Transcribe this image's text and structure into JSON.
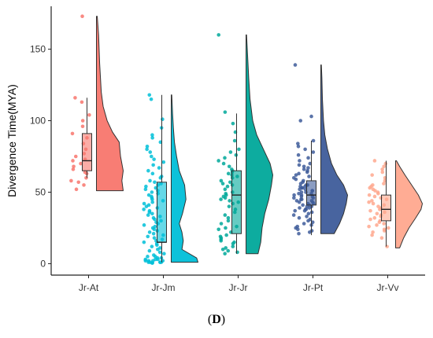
{
  "caption": {
    "open": "(",
    "letter": "D",
    "close": ")"
  },
  "chart_data": {
    "type": "raincloud",
    "ylabel": "Divergence Time(MYA)",
    "xlabel": "",
    "ylim": [
      -8,
      180
    ],
    "yticks": [
      0,
      50,
      100,
      150
    ],
    "grid": false,
    "categories": [
      "Jr-At",
      "Jr-Jm",
      "Jr-Jr",
      "Jr-Pt",
      "Jr-Vv"
    ],
    "colors": [
      "#F8766D",
      "#00BFD8",
      "#00A89A",
      "#3E5C9A",
      "#FFA88E"
    ],
    "groups": [
      {
        "name": "Jr-At",
        "box": {
          "min": 60,
          "q1": 65,
          "median": 72,
          "q3": 91,
          "max": 116
        },
        "violin_range": [
          51,
          173
        ],
        "violin_density": [
          [
            51,
            1.0
          ],
          [
            58,
            0.95
          ],
          [
            65,
            1.0
          ],
          [
            75,
            0.9
          ],
          [
            85,
            0.85
          ],
          [
            92,
            0.6
          ],
          [
            100,
            0.4
          ],
          [
            110,
            0.25
          ],
          [
            120,
            0.18
          ],
          [
            140,
            0.12
          ],
          [
            160,
            0.08
          ],
          [
            173,
            0.03
          ]
        ],
        "points": [
          173,
          116,
          113,
          104,
          100,
          96,
          91,
          88,
          84,
          80,
          77,
          75,
          73,
          72,
          70,
          68,
          66,
          64,
          63,
          60,
          58,
          57,
          55,
          52
        ]
      },
      {
        "name": "Jr-Jm",
        "box": {
          "min": 1,
          "q1": 15,
          "median": 15,
          "q3": 57,
          "max": 118
        },
        "violin_range": [
          1,
          118
        ],
        "violin_density": [
          [
            1,
            1.0
          ],
          [
            4,
            0.95
          ],
          [
            10,
            0.4
          ],
          [
            16,
            0.45
          ],
          [
            22,
            0.4
          ],
          [
            28,
            0.3
          ],
          [
            35,
            0.42
          ],
          [
            45,
            0.55
          ],
          [
            55,
            0.5
          ],
          [
            65,
            0.3
          ],
          [
            75,
            0.2
          ],
          [
            85,
            0.12
          ],
          [
            95,
            0.08
          ],
          [
            105,
            0.05
          ],
          [
            118,
            0.02
          ]
        ],
        "points": [
          118,
          115,
          101,
          95,
          90,
          88,
          85,
          82,
          80,
          78,
          75,
          73,
          71,
          69,
          67,
          65,
          63,
          61,
          60,
          58,
          57,
          56,
          55,
          54,
          53,
          52,
          51,
          50,
          49,
          48,
          47,
          46,
          45,
          44,
          43,
          42,
          41,
          40,
          39,
          38,
          37,
          36,
          35,
          34,
          33,
          32,
          31,
          30,
          29,
          28,
          27,
          26,
          25,
          24,
          23,
          22,
          21,
          20,
          19,
          18,
          17,
          16,
          15,
          14,
          13,
          12,
          11,
          10,
          9,
          8,
          7,
          6,
          5,
          5,
          4,
          4,
          3,
          3,
          3,
          2,
          2,
          2,
          2,
          1,
          1,
          1,
          1,
          1,
          0.5,
          0.5
        ]
      },
      {
        "name": "Jr-Jr",
        "box": {
          "min": 7,
          "q1": 21,
          "median": 48,
          "q3": 65,
          "max": 105
        },
        "violin_range": [
          7,
          160
        ],
        "violin_density": [
          [
            7,
            0.45
          ],
          [
            15,
            0.55
          ],
          [
            25,
            0.6
          ],
          [
            35,
            0.7
          ],
          [
            45,
            0.85
          ],
          [
            55,
            0.95
          ],
          [
            62,
            1.0
          ],
          [
            70,
            0.9
          ],
          [
            80,
            0.65
          ],
          [
            90,
            0.4
          ],
          [
            100,
            0.25
          ],
          [
            115,
            0.15
          ],
          [
            130,
            0.1
          ],
          [
            145,
            0.06
          ],
          [
            160,
            0.02
          ]
        ],
        "points": [
          160,
          106,
          98,
          92,
          86,
          80,
          78,
          76,
          74,
          72,
          70,
          68,
          66,
          65,
          64,
          63,
          62,
          61,
          60,
          58,
          57,
          56,
          55,
          54,
          52,
          50,
          49,
          48,
          47,
          46,
          45,
          44,
          43,
          42,
          40,
          38,
          36,
          34,
          32,
          30,
          28,
          26,
          25,
          24,
          22,
          20,
          19,
          18,
          17,
          16,
          15,
          14,
          12,
          11,
          10,
          9,
          8,
          7
        ]
      },
      {
        "name": "Jr-Pt",
        "box": {
          "min": 20,
          "q1": 41,
          "median": 48,
          "q3": 58,
          "max": 86
        },
        "violin_range": [
          21,
          139
        ],
        "violin_density": [
          [
            21,
            0.5
          ],
          [
            28,
            0.7
          ],
          [
            35,
            0.85
          ],
          [
            42,
            0.95
          ],
          [
            48,
            1.0
          ],
          [
            55,
            0.85
          ],
          [
            62,
            0.6
          ],
          [
            70,
            0.4
          ],
          [
            80,
            0.25
          ],
          [
            90,
            0.15
          ],
          [
            100,
            0.1
          ],
          [
            115,
            0.06
          ],
          [
            130,
            0.04
          ],
          [
            139,
            0.02
          ]
        ],
        "points": [
          139,
          103,
          100,
          86,
          84,
          82,
          80,
          78,
          76,
          74,
          72,
          70,
          69,
          68,
          67,
          66,
          65,
          64,
          63,
          62,
          61,
          60,
          59,
          58,
          57,
          56,
          55,
          55,
          54,
          54,
          53,
          53,
          52,
          52,
          51,
          51,
          50,
          50,
          49,
          49,
          48,
          48,
          47,
          47,
          46,
          46,
          45,
          45,
          44,
          44,
          43,
          43,
          42,
          42,
          41,
          41,
          40,
          40,
          39,
          39,
          38,
          38,
          37,
          37,
          36,
          35,
          34,
          33,
          32,
          31,
          30,
          29,
          28,
          27,
          26,
          25,
          24,
          23,
          22,
          21
        ]
      },
      {
        "name": "Jr-Vv",
        "box": {
          "min": 12,
          "q1": 30,
          "median": 38,
          "q3": 48,
          "max": 72
        },
        "violin_range": [
          11,
          72
        ],
        "violin_density": [
          [
            11,
            0.15
          ],
          [
            18,
            0.3
          ],
          [
            25,
            0.5
          ],
          [
            32,
            0.75
          ],
          [
            38,
            0.95
          ],
          [
            42,
            1.0
          ],
          [
            48,
            0.85
          ],
          [
            55,
            0.6
          ],
          [
            62,
            0.35
          ],
          [
            68,
            0.15
          ],
          [
            72,
            0.03
          ]
        ],
        "points": [
          72,
          70,
          68,
          66,
          64,
          62,
          60,
          58,
          56,
          55,
          54,
          53,
          52,
          51,
          50,
          49,
          48,
          47,
          46,
          45,
          44,
          43,
          42,
          41,
          40,
          39,
          38,
          37,
          36,
          35,
          34,
          33,
          32,
          31,
          30,
          29,
          28,
          27,
          26,
          25,
          24,
          23,
          22,
          20,
          18,
          12
        ]
      }
    ]
  }
}
